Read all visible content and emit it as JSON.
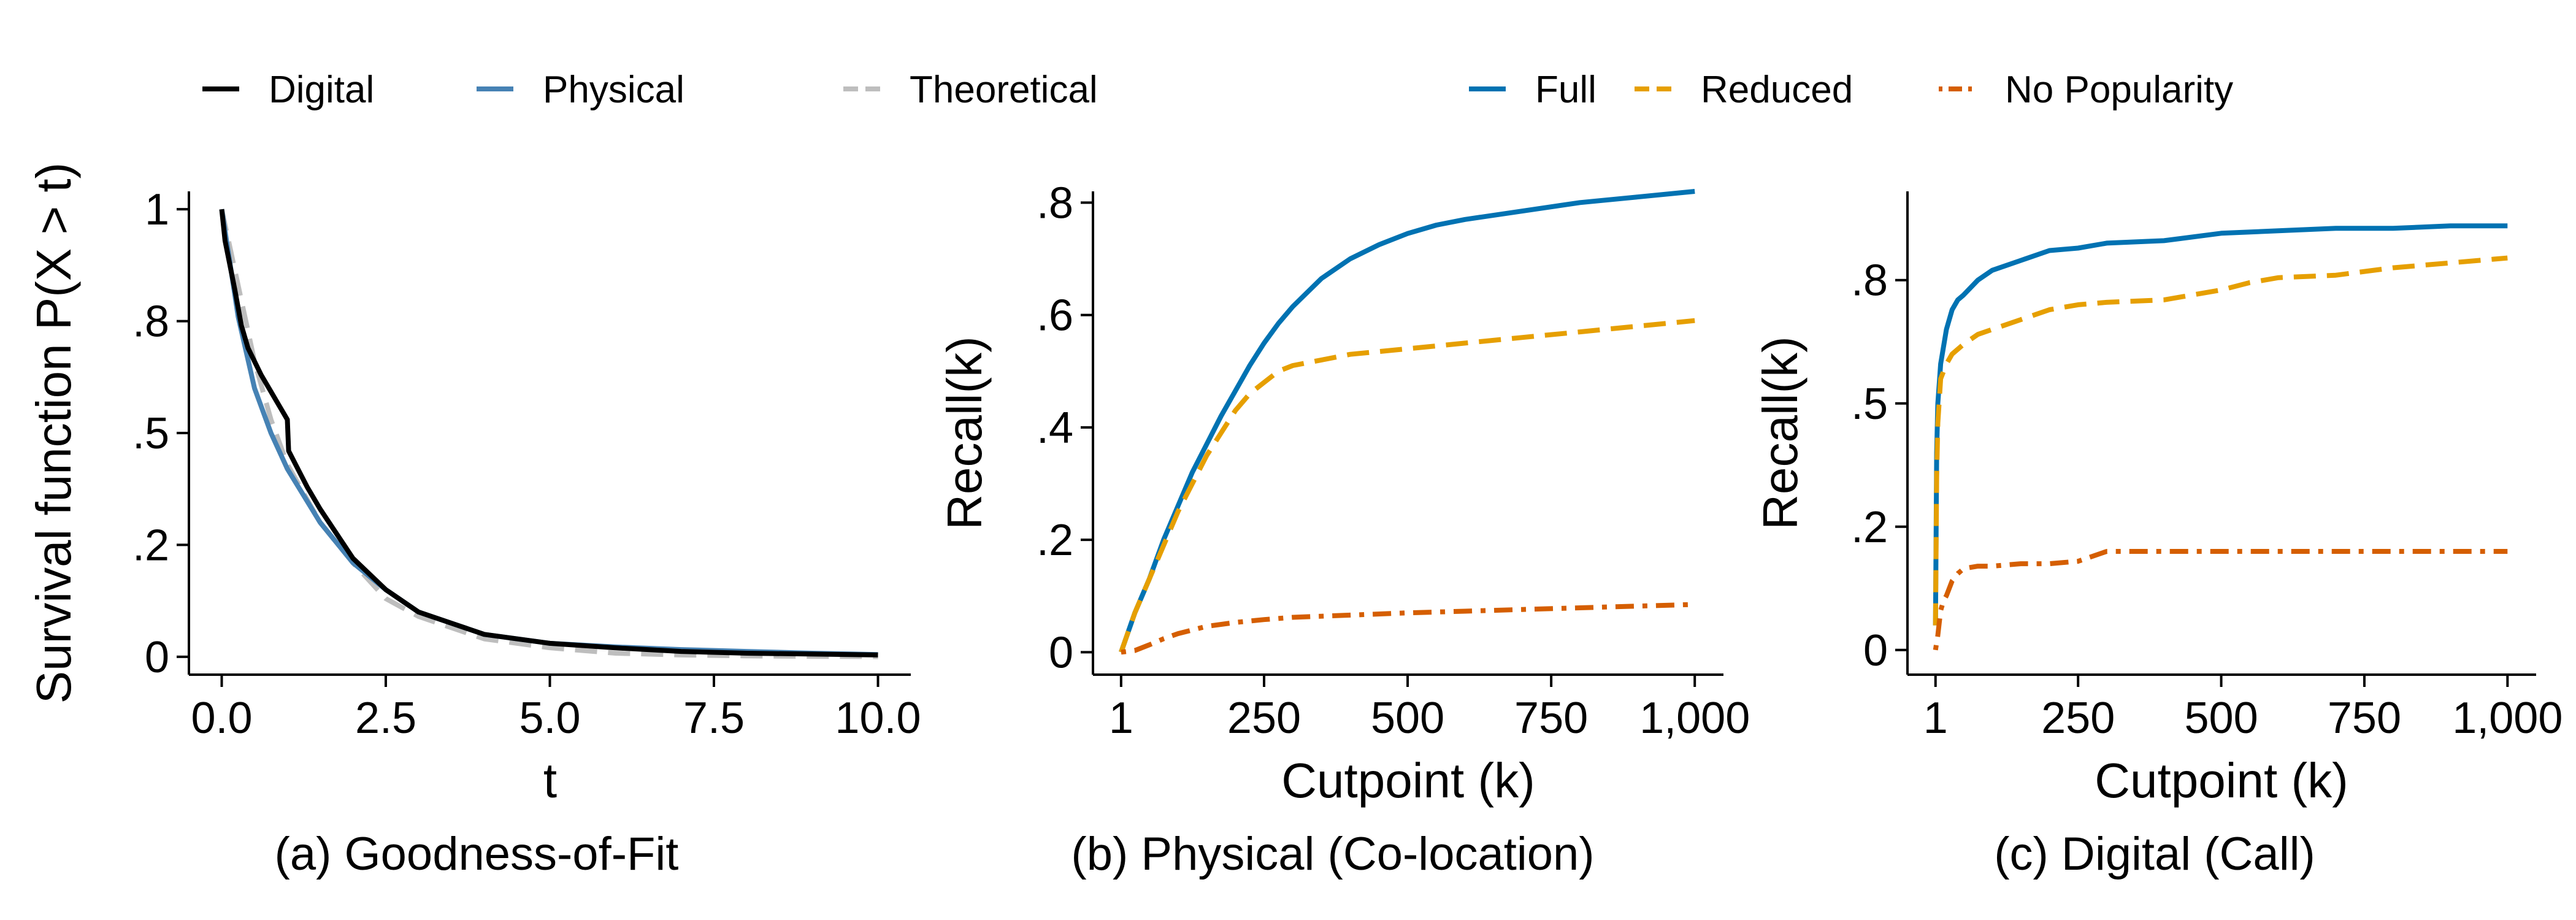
{
  "legends": [
    {
      "items": [
        {
          "label": "Digital",
          "color": "#000000",
          "dash": "solid"
        },
        {
          "label": "Physical",
          "color": "#4682B4",
          "dash": "solid"
        },
        {
          "label": "Theoretical",
          "color": "#BEBEBE",
          "dash": "dashed"
        }
      ]
    },
    {
      "items": [
        {
          "label": "Full",
          "color": "#0072B2",
          "dash": "solid"
        },
        {
          "label": "Reduced",
          "color": "#E69F00",
          "dash": "dashed"
        },
        {
          "label": "No Popularity",
          "color": "#D55E00",
          "dash": "dotdash"
        }
      ]
    }
  ],
  "chart_data": [
    {
      "type": "line",
      "caption": "(a) Goodness-of-Fit",
      "xlabel": "t",
      "ylabel": "Survival function P(X > t)",
      "xlim": [
        -0.5,
        10.5
      ],
      "ylim": [
        -0.04,
        1.04
      ],
      "x_ticks": [
        0,
        2.5,
        5,
        7.5,
        10
      ],
      "x_tick_labels": [
        "0.0",
        "2.5",
        "5.0",
        "7.5",
        "10.0"
      ],
      "y_ticks": [
        0,
        0.25,
        0.5,
        0.75,
        1
      ],
      "y_tick_labels": [
        "0",
        ".2",
        ".5",
        ".8",
        "1"
      ],
      "series": [
        {
          "name": "Theoretical",
          "color": "#BEBEBE",
          "dash": "dashed",
          "x": [
            0,
            0.25,
            0.5,
            0.75,
            1.0,
            1.5,
            2.0,
            2.5,
            3.0,
            4.0,
            5.0,
            6.0,
            7.0,
            8.0,
            9.0,
            10.0
          ],
          "y": [
            1.0,
            0.83,
            0.66,
            0.53,
            0.43,
            0.3,
            0.21,
            0.13,
            0.09,
            0.04,
            0.02,
            0.008,
            0.004,
            0.002,
            0.001,
            0.0005
          ]
        },
        {
          "name": "Physical",
          "color": "#4682B4",
          "dash": "solid",
          "x": [
            0,
            0.25,
            0.5,
            0.75,
            1.0,
            1.5,
            2.0,
            2.5,
            3.0,
            4.0,
            5.0,
            6.0,
            7.0,
            8.0,
            9.0,
            10.0
          ],
          "y": [
            1.0,
            0.76,
            0.6,
            0.5,
            0.42,
            0.3,
            0.21,
            0.15,
            0.1,
            0.05,
            0.03,
            0.022,
            0.016,
            0.012,
            0.008,
            0.005
          ]
        },
        {
          "name": "Digital",
          "color": "#000000",
          "dash": "solid",
          "x": [
            0,
            0.05,
            0.2,
            0.3,
            0.4,
            0.5,
            0.6,
            0.8,
            1.0,
            1.02,
            1.3,
            1.5,
            2.0,
            2.5,
            3.0,
            4.0,
            5.0,
            6.0,
            7.0,
            8.0,
            9.0,
            10.0
          ],
          "y": [
            1.0,
            0.93,
            0.82,
            0.74,
            0.69,
            0.66,
            0.63,
            0.58,
            0.53,
            0.46,
            0.38,
            0.33,
            0.22,
            0.15,
            0.1,
            0.05,
            0.03,
            0.02,
            0.012,
            0.008,
            0.006,
            0.004
          ]
        }
      ]
    },
    {
      "type": "line",
      "caption": "(b) Physical (Co-location)",
      "xlabel": "Cutpoint (k)",
      "ylabel": "Recall(k)",
      "xlim": [
        -48,
        1050
      ],
      "ylim": [
        -0.04,
        0.82
      ],
      "x_ticks": [
        1,
        250,
        500,
        750,
        1000
      ],
      "x_tick_labels": [
        "1",
        "250",
        "500",
        "750",
        "1,000"
      ],
      "y_ticks": [
        0,
        0.2,
        0.4,
        0.6,
        0.8
      ],
      "y_tick_labels": [
        "0",
        ".2",
        ".4",
        ".6",
        ".8"
      ],
      "series": [
        {
          "name": "Full",
          "color": "#0072B2",
          "dash": "solid",
          "x": [
            1,
            25,
            50,
            75,
            100,
            125,
            150,
            175,
            200,
            225,
            250,
            275,
            300,
            350,
            400,
            450,
            500,
            550,
            600,
            700,
            800,
            900,
            1000
          ],
          "y": [
            0,
            0.07,
            0.13,
            0.2,
            0.26,
            0.32,
            0.37,
            0.42,
            0.465,
            0.51,
            0.55,
            0.585,
            0.615,
            0.665,
            0.7,
            0.725,
            0.745,
            0.76,
            0.77,
            0.785,
            0.8,
            0.81,
            0.82
          ]
        },
        {
          "name": "Reduced",
          "color": "#E69F00",
          "dash": "dashed",
          "x": [
            1,
            25,
            50,
            75,
            100,
            125,
            150,
            175,
            200,
            225,
            250,
            275,
            300,
            350,
            400,
            500,
            600,
            700,
            800,
            900,
            1000
          ],
          "y": [
            0,
            0.07,
            0.13,
            0.19,
            0.25,
            0.3,
            0.35,
            0.39,
            0.43,
            0.46,
            0.48,
            0.5,
            0.51,
            0.52,
            0.53,
            0.54,
            0.55,
            0.56,
            0.57,
            0.58,
            0.59
          ]
        },
        {
          "name": "No Popularity",
          "color": "#D55E00",
          "dash": "dotdash",
          "x": [
            1,
            25,
            50,
            75,
            100,
            150,
            200,
            250,
            300,
            400,
            500,
            600,
            700,
            800,
            900,
            1000
          ],
          "y": [
            0,
            0.003,
            0.013,
            0.024,
            0.033,
            0.046,
            0.053,
            0.058,
            0.062,
            0.066,
            0.07,
            0.073,
            0.076,
            0.079,
            0.082,
            0.085
          ]
        }
      ]
    },
    {
      "type": "line",
      "caption": "(c) Digital (Call)",
      "xlabel": "Cutpoint (k)",
      "ylabel": "Recall(k)",
      "xlim": [
        -48,
        1050
      ],
      "ylim": [
        -0.05,
        0.93
      ],
      "x_ticks": [
        1,
        250,
        500,
        750,
        1000
      ],
      "x_tick_labels": [
        "1",
        "250",
        "500",
        "750",
        "1,000"
      ],
      "y_ticks": [
        0,
        0.25,
        0.5,
        0.75
      ],
      "y_tick_labels": [
        "0",
        ".2",
        ".5",
        ".8"
      ],
      "series": [
        {
          "name": "Full",
          "color": "#0072B2",
          "dash": "solid",
          "x": [
            1,
            3,
            5,
            10,
            20,
            30,
            40,
            50,
            75,
            100,
            150,
            200,
            250,
            300,
            400,
            500,
            600,
            700,
            800,
            900,
            1000
          ],
          "y": [
            0.05,
            0.4,
            0.5,
            0.58,
            0.65,
            0.69,
            0.71,
            0.72,
            0.75,
            0.77,
            0.79,
            0.81,
            0.815,
            0.825,
            0.83,
            0.845,
            0.85,
            0.855,
            0.855,
            0.86,
            0.86
          ]
        },
        {
          "name": "Reduced",
          "color": "#E69F00",
          "dash": "dashed",
          "x": [
            1,
            3,
            5,
            10,
            20,
            30,
            50,
            75,
            100,
            150,
            200,
            250,
            300,
            400,
            500,
            550,
            600,
            700,
            800,
            900,
            1000
          ],
          "y": [
            0.05,
            0.35,
            0.46,
            0.55,
            0.58,
            0.6,
            0.62,
            0.64,
            0.65,
            0.67,
            0.69,
            0.7,
            0.705,
            0.71,
            0.73,
            0.745,
            0.755,
            0.76,
            0.775,
            0.785,
            0.795
          ]
        },
        {
          "name": "No Popularity",
          "color": "#D55E00",
          "dash": "dotdash",
          "x": [
            1,
            5,
            10,
            15,
            20,
            30,
            40,
            50,
            75,
            100,
            150,
            200,
            250,
            300,
            500,
            750,
            1000
          ],
          "y": [
            0,
            0.03,
            0.08,
            0.1,
            0.11,
            0.14,
            0.155,
            0.165,
            0.17,
            0.17,
            0.175,
            0.175,
            0.18,
            0.2,
            0.2,
            0.2,
            0.2
          ]
        }
      ]
    }
  ]
}
